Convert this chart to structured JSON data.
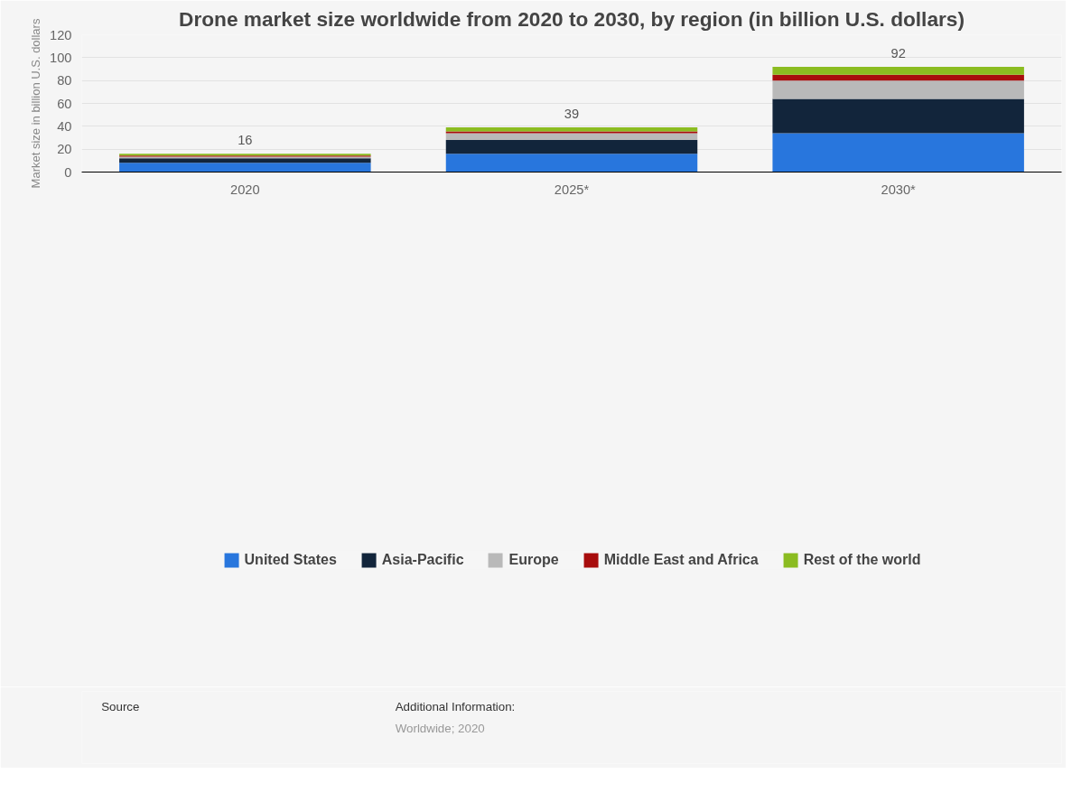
{
  "chart_data": {
    "type": "bar",
    "stacked": true,
    "title": "Drone market size worldwide from 2020 to 2030, by region (in billion U.S. dollars)",
    "ylabel": "Market size in billion U.S. dollars",
    "categories": [
      "2020",
      "2025*",
      "2030*"
    ],
    "series": [
      {
        "name": "United States",
        "color": "#2876dd",
        "values": [
          8,
          16,
          34
        ]
      },
      {
        "name": "Asia-Pacific",
        "color": "#12253b",
        "values": [
          4,
          12,
          30
        ]
      },
      {
        "name": "Europe",
        "color": "#b9b9b9",
        "values": [
          1.5,
          6,
          16
        ]
      },
      {
        "name": "Middle East and Africa",
        "color": "#a80d0d",
        "values": [
          1,
          1.5,
          5
        ]
      },
      {
        "name": "Rest of the world",
        "color": "#8bbc21",
        "values": [
          1.5,
          3.5,
          7
        ]
      }
    ],
    "totals": [
      "16",
      "39",
      "92"
    ],
    "ylim": [
      0,
      120
    ],
    "yticks": [
      0,
      20,
      40,
      60,
      80,
      100,
      120
    ],
    "grid": "y",
    "legend": "bottom",
    "annotations": [
      "Source",
      "Additional Information:",
      "Worldwide; 2020"
    ]
  }
}
